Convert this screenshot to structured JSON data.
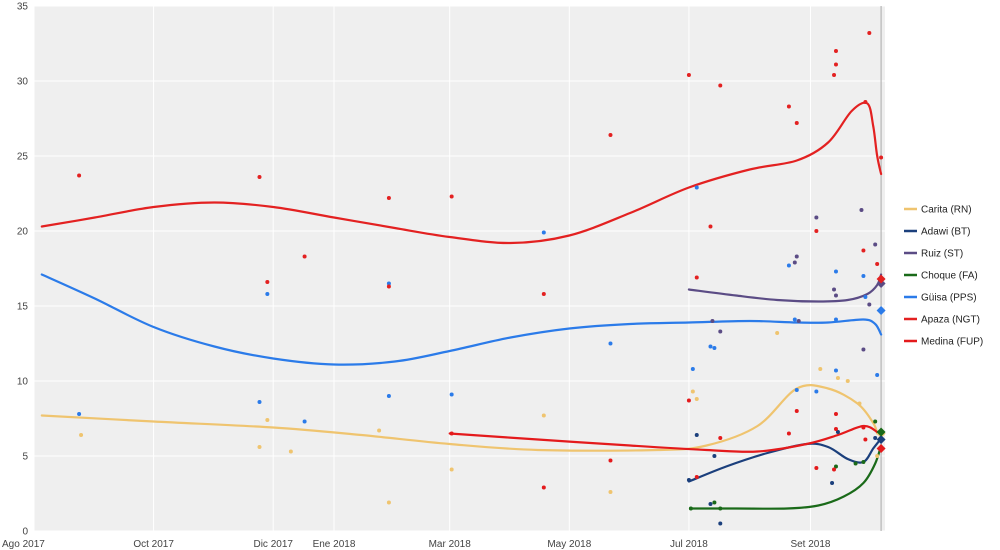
{
  "chart_data": {
    "type": "line",
    "title": "",
    "xlabel": "",
    "ylabel": "",
    "xlim": [
      "2017-08-01",
      "2018-10-09"
    ],
    "ylim": [
      0,
      35
    ],
    "y_ticks": [
      0,
      5,
      10,
      15,
      20,
      25,
      30,
      35
    ],
    "x_ticks": [
      {
        "label": "Ago 2017",
        "date": "2017-08-01"
      },
      {
        "label": "Oct 2017",
        "date": "2017-10-01"
      },
      {
        "label": "Dic 2017",
        "date": "2017-12-01"
      },
      {
        "label": "Ene 2018",
        "date": "2018-01-01"
      },
      {
        "label": "Mar 2018",
        "date": "2018-03-01"
      },
      {
        "label": "May 2018",
        "date": "2018-05-01"
      },
      {
        "label": "Jul 2018",
        "date": "2018-07-01"
      },
      {
        "label": "Set 2018",
        "date": "2018-09-01"
      }
    ],
    "grid": true,
    "legend_position": "right",
    "election_date": "2018-10-07",
    "series": [
      {
        "name": "Carita (RN)",
        "color": "#efc46f",
        "trend": [
          [
            "2017-08-05",
            7.7
          ],
          [
            "2017-10-01",
            7.3
          ],
          [
            "2017-12-01",
            6.9
          ],
          [
            "2018-01-15",
            6.4
          ],
          [
            "2018-03-01",
            5.8
          ],
          [
            "2018-04-15",
            5.4
          ],
          [
            "2018-06-15",
            5.4
          ],
          [
            "2018-07-10",
            5.7
          ],
          [
            "2018-08-05",
            7.0
          ],
          [
            "2018-08-25",
            9.5
          ],
          [
            "2018-09-10",
            9.5
          ],
          [
            "2018-09-25",
            8.5
          ],
          [
            "2018-10-03",
            7.2
          ],
          [
            "2018-10-05",
            6.5
          ]
        ],
        "polls": [
          [
            "2017-08-25",
            6.4
          ],
          [
            "2017-11-24",
            5.6
          ],
          [
            "2017-11-28",
            7.4
          ],
          [
            "2017-12-10",
            5.3
          ],
          [
            "2018-01-24",
            6.7
          ],
          [
            "2018-01-29",
            1.9
          ],
          [
            "2018-03-02",
            4.1
          ],
          [
            "2018-04-18",
            7.7
          ],
          [
            "2018-05-22",
            2.6
          ],
          [
            "2018-07-03",
            9.3
          ],
          [
            "2018-07-05",
            8.8
          ],
          [
            "2018-08-15",
            13.2
          ],
          [
            "2018-09-06",
            10.8
          ],
          [
            "2018-09-15",
            10.2
          ],
          [
            "2018-09-20",
            10.0
          ],
          [
            "2018-09-26",
            8.5
          ],
          [
            "2018-10-05",
            5.0
          ]
        ],
        "final": [
          "2018-10-07",
          6.5
        ]
      },
      {
        "name": "Adawi (BT)",
        "color": "#1b3f7c",
        "trend": [
          [
            "2018-07-01",
            3.3
          ],
          [
            "2018-07-20",
            4.3
          ],
          [
            "2018-08-10",
            5.2
          ],
          [
            "2018-08-30",
            5.8
          ],
          [
            "2018-09-10",
            5.6
          ],
          [
            "2018-09-20",
            4.8
          ],
          [
            "2018-09-28",
            4.6
          ],
          [
            "2018-10-03",
            5.5
          ],
          [
            "2018-10-06",
            6.0
          ]
        ],
        "polls": [
          [
            "2018-07-01",
            3.4
          ],
          [
            "2018-07-05",
            6.4
          ],
          [
            "2018-07-12",
            1.8
          ],
          [
            "2018-07-14",
            5.0
          ],
          [
            "2018-07-17",
            0.5
          ],
          [
            "2018-09-12",
            3.2
          ],
          [
            "2018-09-15",
            6.6
          ],
          [
            "2018-10-04",
            6.2
          ]
        ],
        "final": [
          "2018-10-07",
          6.1
        ]
      },
      {
        "name": "Ruiz (ST)",
        "color": "#5b4c85",
        "trend": [
          [
            "2018-07-01",
            16.1
          ],
          [
            "2018-07-25",
            15.7
          ],
          [
            "2018-08-15",
            15.4
          ],
          [
            "2018-09-05",
            15.3
          ],
          [
            "2018-09-20",
            15.4
          ],
          [
            "2018-09-30",
            15.8
          ],
          [
            "2018-10-05",
            16.4
          ],
          [
            "2018-10-07",
            17.1
          ]
        ],
        "polls": [
          [
            "2018-07-13",
            14.0
          ],
          [
            "2018-07-17",
            13.3
          ],
          [
            "2018-08-24",
            17.9
          ],
          [
            "2018-08-25",
            18.3
          ],
          [
            "2018-08-26",
            14.0
          ],
          [
            "2018-09-04",
            20.9
          ],
          [
            "2018-09-13",
            16.1
          ],
          [
            "2018-09-14",
            15.7
          ],
          [
            "2018-09-27",
            21.4
          ],
          [
            "2018-09-28",
            12.1
          ],
          [
            "2018-10-01",
            15.1
          ],
          [
            "2018-10-04",
            19.1
          ]
        ],
        "final": [
          "2018-10-07",
          16.5
        ]
      },
      {
        "name": "Choque (FA)",
        "color": "#1a6a19",
        "trend": [
          [
            "2018-07-02",
            1.5
          ],
          [
            "2018-07-25",
            1.5
          ],
          [
            "2018-08-20",
            1.5
          ],
          [
            "2018-09-05",
            1.7
          ],
          [
            "2018-09-18",
            2.3
          ],
          [
            "2018-09-28",
            3.2
          ],
          [
            "2018-10-04",
            4.5
          ],
          [
            "2018-10-07",
            5.7
          ]
        ],
        "polls": [
          [
            "2018-07-02",
            1.5
          ],
          [
            "2018-07-14",
            1.9
          ],
          [
            "2018-07-17",
            1.5
          ],
          [
            "2018-09-14",
            4.3
          ],
          [
            "2018-09-24",
            4.5
          ],
          [
            "2018-09-28",
            4.6
          ],
          [
            "2018-10-04",
            7.3
          ]
        ],
        "final": [
          "2018-10-07",
          6.6
        ]
      },
      {
        "name": "Güisa (PPS)",
        "color": "#2b7be9",
        "trend": [
          [
            "2017-08-05",
            17.1
          ],
          [
            "2017-09-01",
            15.5
          ],
          [
            "2017-10-01",
            13.6
          ],
          [
            "2017-11-01",
            12.3
          ],
          [
            "2017-12-01",
            11.5
          ],
          [
            "2018-01-01",
            11.1
          ],
          [
            "2018-02-01",
            11.3
          ],
          [
            "2018-03-01",
            12.0
          ],
          [
            "2018-04-01",
            12.9
          ],
          [
            "2018-05-01",
            13.5
          ],
          [
            "2018-06-01",
            13.8
          ],
          [
            "2018-07-01",
            13.9
          ],
          [
            "2018-08-01",
            14.0
          ],
          [
            "2018-08-25",
            13.9
          ],
          [
            "2018-09-10",
            13.9
          ],
          [
            "2018-09-28",
            14.1
          ],
          [
            "2018-10-04",
            13.8
          ],
          [
            "2018-10-07",
            13.1
          ]
        ],
        "polls": [
          [
            "2017-08-24",
            7.8
          ],
          [
            "2017-11-24",
            8.6
          ],
          [
            "2017-11-28",
            15.8
          ],
          [
            "2017-12-17",
            7.3
          ],
          [
            "2018-01-29",
            16.5
          ],
          [
            "2018-01-29",
            9.0
          ],
          [
            "2018-03-02",
            9.1
          ],
          [
            "2018-04-18",
            19.9
          ],
          [
            "2018-05-22",
            12.5
          ],
          [
            "2018-07-03",
            10.8
          ],
          [
            "2018-07-05",
            22.9
          ],
          [
            "2018-07-12",
            12.3
          ],
          [
            "2018-07-14",
            12.2
          ],
          [
            "2018-08-21",
            17.7
          ],
          [
            "2018-08-24",
            14.1
          ],
          [
            "2018-08-25",
            9.4
          ],
          [
            "2018-09-04",
            9.3
          ],
          [
            "2018-09-14",
            17.3
          ],
          [
            "2018-09-14",
            10.7
          ],
          [
            "2018-09-14",
            14.1
          ],
          [
            "2018-09-28",
            17.0
          ],
          [
            "2018-09-29",
            15.6
          ],
          [
            "2018-10-05",
            10.4
          ]
        ],
        "final": [
          "2018-10-07",
          14.7
        ]
      },
      {
        "name": "Apaza (NGT)",
        "color": "#e32121",
        "trend": [
          [
            "2017-08-05",
            20.3
          ],
          [
            "2017-09-01",
            20.9
          ],
          [
            "2017-10-01",
            21.6
          ],
          [
            "2017-11-01",
            21.9
          ],
          [
            "2017-12-01",
            21.6
          ],
          [
            "2018-01-01",
            20.9
          ],
          [
            "2018-02-01",
            20.2
          ],
          [
            "2018-03-01",
            19.6
          ],
          [
            "2018-04-01",
            19.2
          ],
          [
            "2018-05-01",
            19.7
          ],
          [
            "2018-06-01",
            21.2
          ],
          [
            "2018-07-01",
            22.9
          ],
          [
            "2018-08-01",
            24.1
          ],
          [
            "2018-08-25",
            24.7
          ],
          [
            "2018-09-10",
            25.9
          ],
          [
            "2018-09-22",
            28.0
          ],
          [
            "2018-09-30",
            28.5
          ],
          [
            "2018-10-03",
            27.0
          ],
          [
            "2018-10-05",
            25.0
          ],
          [
            "2018-10-07",
            23.8
          ]
        ],
        "polls": [
          [
            "2017-08-24",
            23.7
          ],
          [
            "2017-11-24",
            23.6
          ],
          [
            "2017-11-28",
            16.6
          ],
          [
            "2017-12-17",
            18.3
          ],
          [
            "2018-01-29",
            16.3
          ],
          [
            "2018-01-29",
            22.2
          ],
          [
            "2018-03-02",
            22.3
          ],
          [
            "2018-04-18",
            15.8
          ],
          [
            "2018-05-22",
            26.4
          ],
          [
            "2018-07-01",
            30.4
          ],
          [
            "2018-07-05",
            16.9
          ],
          [
            "2018-07-12",
            20.3
          ],
          [
            "2018-07-17",
            29.7
          ],
          [
            "2018-08-21",
            28.3
          ],
          [
            "2018-08-25",
            27.2
          ],
          [
            "2018-09-04",
            20.0
          ],
          [
            "2018-09-13",
            30.4
          ],
          [
            "2018-09-14",
            31.1
          ],
          [
            "2018-09-14",
            32.0
          ],
          [
            "2018-09-28",
            18.7
          ],
          [
            "2018-09-29",
            28.6
          ],
          [
            "2018-10-01",
            33.2
          ],
          [
            "2018-10-05",
            17.8
          ],
          [
            "2018-10-07",
            24.9
          ]
        ],
        "final": [
          "2018-10-07",
          16.8
        ]
      },
      {
        "name": "Medina (FUP)",
        "color": "#e41a1c",
        "trend": [
          [
            "2018-03-01",
            6.5
          ],
          [
            "2018-04-15",
            6.1
          ],
          [
            "2018-06-01",
            5.7
          ],
          [
            "2018-07-10",
            5.4
          ],
          [
            "2018-08-05",
            5.3
          ],
          [
            "2018-08-30",
            5.8
          ],
          [
            "2018-09-15",
            6.4
          ],
          [
            "2018-09-28",
            7.0
          ],
          [
            "2018-10-05",
            6.6
          ],
          [
            "2018-10-07",
            6.3
          ]
        ],
        "polls": [
          [
            "2018-03-02",
            6.5
          ],
          [
            "2018-04-18",
            2.9
          ],
          [
            "2018-05-22",
            4.7
          ],
          [
            "2018-07-01",
            8.7
          ],
          [
            "2018-07-05",
            3.6
          ],
          [
            "2018-07-17",
            6.2
          ],
          [
            "2018-08-21",
            6.5
          ],
          [
            "2018-08-25",
            8.0
          ],
          [
            "2018-09-04",
            4.2
          ],
          [
            "2018-09-13",
            4.1
          ],
          [
            "2018-09-14",
            7.8
          ],
          [
            "2018-09-14",
            6.8
          ],
          [
            "2018-09-28",
            6.9
          ],
          [
            "2018-09-29",
            6.1
          ]
        ],
        "final": [
          "2018-10-07",
          5.5
        ]
      }
    ]
  }
}
